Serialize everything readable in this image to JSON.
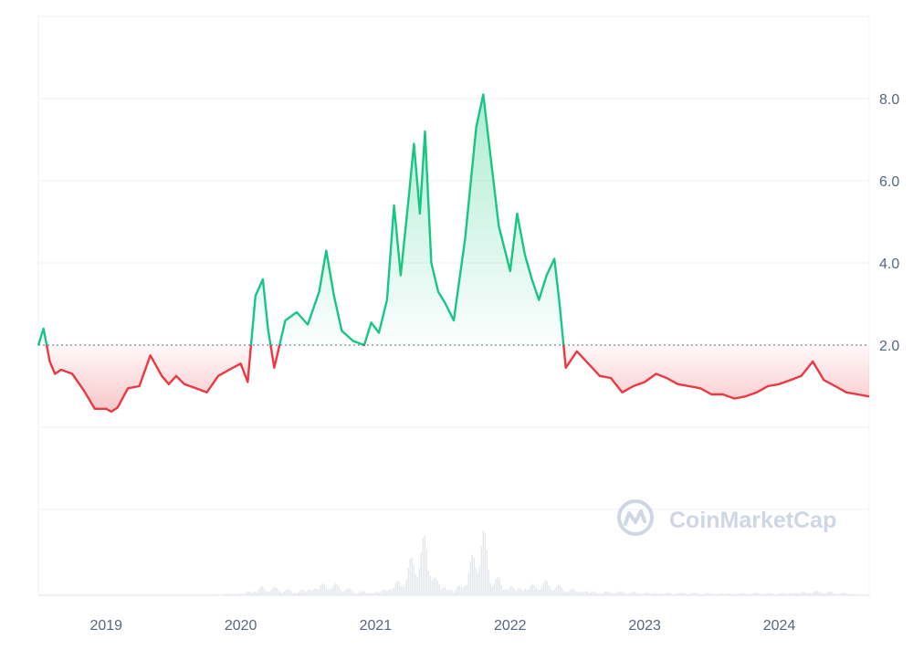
{
  "chart_data": {
    "type": "line",
    "title": "",
    "xlabel": "",
    "ylabel": "",
    "baseline": 2.0,
    "y_axis_position": "right",
    "grid": true,
    "ylim": [
      -2.0,
      10.0
    ],
    "xlim": [
      "2018-07-01",
      "2024-09-01"
    ],
    "y_ticks": [
      "8.0",
      "6.0",
      "4.0",
      "2.0"
    ],
    "y_tick_values": [
      8.0,
      6.0,
      4.0,
      2.0
    ],
    "x_ticks": [
      "2019",
      "2020",
      "2021",
      "2022",
      "2023",
      "2024"
    ],
    "x_tick_dates": [
      "2019-01-01",
      "2020-01-01",
      "2021-01-01",
      "2022-01-01",
      "2023-01-01",
      "2024-01-01"
    ],
    "colors": {
      "above": "#16c784",
      "below": "#ea3943",
      "grid": "#eff2f5",
      "baseline": "#58667e",
      "volume": "#e6e9ee"
    },
    "watermark": "CoinMarketCap",
    "series": [
      {
        "x": [
          "2018-07-01",
          "2018-07-15",
          "2018-08-01",
          "2018-08-15",
          "2018-09-01",
          "2018-10-01",
          "2018-11-01",
          "2018-12-01",
          "2019-01-01",
          "2019-01-15",
          "2019-02-01",
          "2019-03-01",
          "2019-04-01",
          "2019-05-01",
          "2019-06-01",
          "2019-06-20",
          "2019-07-10",
          "2019-08-01",
          "2019-09-01",
          "2019-10-01",
          "2019-11-01",
          "2019-12-01",
          "2020-01-01",
          "2020-01-20",
          "2020-02-10",
          "2020-03-01",
          "2020-03-15",
          "2020-04-01",
          "2020-05-01",
          "2020-06-01",
          "2020-07-01",
          "2020-08-01",
          "2020-08-20",
          "2020-09-10",
          "2020-10-01",
          "2020-11-01",
          "2020-12-01",
          "2020-12-20",
          "2021-01-10",
          "2021-02-01",
          "2021-02-20",
          "2021-03-10",
          "2021-04-01",
          "2021-04-15",
          "2021-05-01",
          "2021-05-15",
          "2021-06-01",
          "2021-06-20",
          "2021-07-10",
          "2021-08-01",
          "2021-09-01",
          "2021-10-01",
          "2021-10-20",
          "2021-11-10",
          "2021-12-01",
          "2022-01-01",
          "2022-01-20",
          "2022-02-10",
          "2022-03-01",
          "2022-03-20",
          "2022-04-10",
          "2022-05-01",
          "2022-05-15",
          "2022-06-01",
          "2022-07-01",
          "2022-08-01",
          "2022-09-01",
          "2022-10-01",
          "2022-11-01",
          "2022-12-01",
          "2023-01-01",
          "2023-02-01",
          "2023-03-01",
          "2023-04-01",
          "2023-05-01",
          "2023-06-01",
          "2023-07-01",
          "2023-08-01",
          "2023-09-01",
          "2023-10-01",
          "2023-11-01",
          "2023-12-01",
          "2024-01-01",
          "2024-02-01",
          "2024-03-01",
          "2024-04-01",
          "2024-05-01",
          "2024-06-01",
          "2024-07-01",
          "2024-08-01",
          "2024-09-01"
        ],
        "y": [
          2.0,
          2.4,
          1.6,
          1.3,
          1.4,
          1.3,
          0.9,
          0.45,
          0.45,
          0.38,
          0.48,
          0.95,
          1.0,
          1.75,
          1.25,
          1.05,
          1.25,
          1.05,
          0.95,
          0.85,
          1.25,
          1.4,
          1.55,
          1.1,
          3.2,
          3.6,
          2.4,
          1.45,
          2.6,
          2.8,
          2.5,
          3.3,
          4.3,
          3.2,
          2.35,
          2.1,
          2.0,
          2.55,
          2.3,
          3.1,
          5.4,
          3.7,
          5.6,
          6.9,
          5.2,
          7.2,
          4.0,
          3.3,
          3.0,
          2.6,
          4.6,
          7.3,
          8.1,
          6.5,
          4.9,
          3.8,
          5.2,
          4.2,
          3.6,
          3.1,
          3.7,
          4.1,
          3.0,
          1.45,
          1.85,
          1.55,
          1.25,
          1.2,
          0.85,
          1.0,
          1.1,
          1.3,
          1.2,
          1.05,
          1.0,
          0.95,
          0.8,
          0.8,
          0.7,
          0.75,
          0.85,
          1.0,
          1.05,
          1.15,
          1.25,
          1.6,
          1.15,
          1.0,
          0.85,
          0.8,
          0.75
        ]
      }
    ],
    "volume": {
      "x": [
        "2019-10-01",
        "2020-01-01",
        "2020-03-01",
        "2020-06-01",
        "2020-08-20",
        "2020-11-01",
        "2021-01-01",
        "2021-02-20",
        "2021-03-20",
        "2021-04-15",
        "2021-05-15",
        "2021-06-15",
        "2021-08-01",
        "2021-09-01",
        "2021-09-25",
        "2021-10-15",
        "2021-11-10",
        "2021-12-15",
        "2022-02-01",
        "2022-04-01",
        "2022-06-01",
        "2022-09-01",
        "2023-01-01",
        "2023-06-01",
        "2024-01-01",
        "2024-04-01",
        "2024-08-01"
      ],
      "values": [
        0.01,
        0.03,
        0.12,
        0.06,
        0.18,
        0.06,
        0.05,
        0.16,
        0.28,
        0.55,
        0.75,
        0.2,
        0.08,
        0.25,
        0.6,
        0.9,
        0.3,
        0.15,
        0.12,
        0.18,
        0.1,
        0.05,
        0.04,
        0.03,
        0.03,
        0.06,
        0.02
      ]
    }
  }
}
